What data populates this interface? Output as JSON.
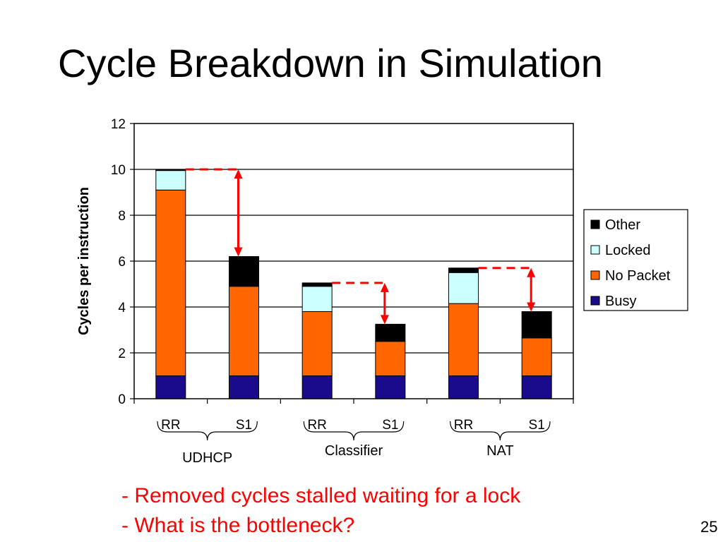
{
  "slide": {
    "title": "Cycle Breakdown in Simulation",
    "bullets": [
      "- Removed cycles stalled waiting for a lock",
      "- What is the bottleneck?"
    ],
    "page_number": "25"
  },
  "chart_data": {
    "type": "bar",
    "stacked": true,
    "ylabel": "Cycles per instruction",
    "ylim": [
      0,
      12
    ],
    "yticks": [
      0,
      2,
      4,
      6,
      8,
      10,
      12
    ],
    "grid": true,
    "legend_position": "right",
    "categories": [
      "RR",
      "S1",
      "RR",
      "S1",
      "RR",
      "S1"
    ],
    "groups": [
      {
        "name": "UDHCP",
        "categories": [
          "RR",
          "S1"
        ]
      },
      {
        "name": "Classifier",
        "categories": [
          "RR",
          "S1"
        ]
      },
      {
        "name": "NAT",
        "categories": [
          "RR",
          "S1"
        ]
      }
    ],
    "series": [
      {
        "name": "Busy",
        "color": "#1a0a8c",
        "values": [
          1.0,
          1.0,
          1.0,
          1.0,
          1.0,
          1.0
        ]
      },
      {
        "name": "No Packet",
        "color": "#ff6600",
        "values": [
          8.1,
          3.9,
          2.8,
          1.5,
          3.15,
          1.65
        ]
      },
      {
        "name": "Locked",
        "color": "#ccffff",
        "values": [
          0.85,
          0,
          1.1,
          0,
          1.35,
          0
        ]
      },
      {
        "name": "Other",
        "color": "#000000",
        "values": [
          0.05,
          1.3,
          0.15,
          0.75,
          0.2,
          1.15
        ]
      }
    ],
    "annotations": [
      {
        "type": "reduction-arrow",
        "from_bar": 0,
        "to_bar": 1,
        "color": "#ff0000"
      },
      {
        "type": "reduction-arrow",
        "from_bar": 2,
        "to_bar": 3,
        "color": "#ff0000"
      },
      {
        "type": "reduction-arrow",
        "from_bar": 4,
        "to_bar": 5,
        "color": "#ff0000"
      }
    ]
  }
}
